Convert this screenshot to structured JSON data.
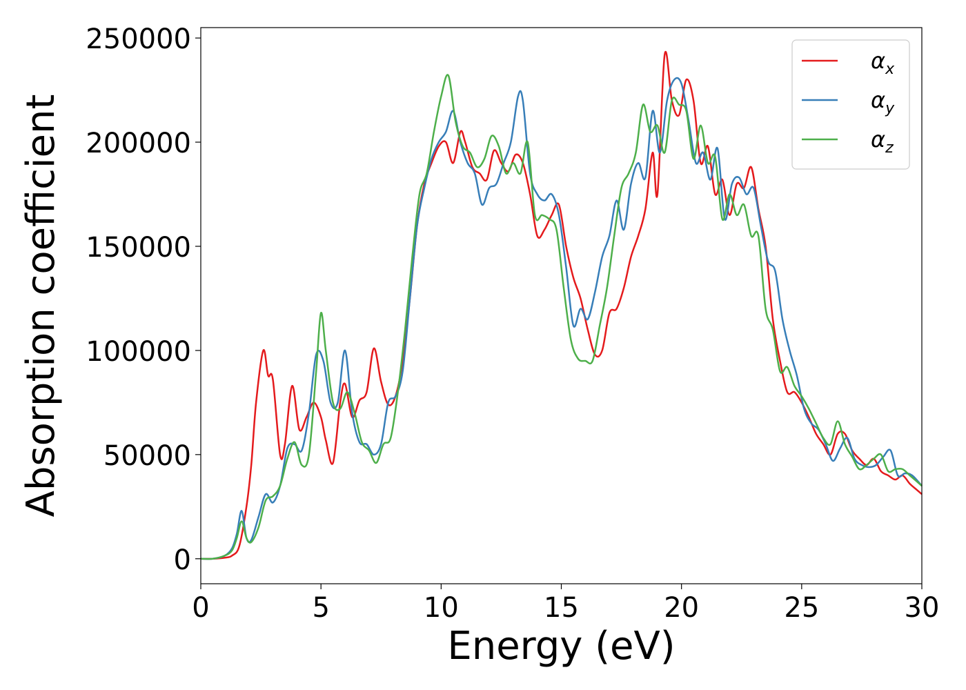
{
  "chart_data": {
    "type": "line",
    "xlabel": "Energy (eV)",
    "ylabel": "Absorption coefficient",
    "xlim": [
      0,
      30
    ],
    "ylim": [
      -12000,
      255000
    ],
    "xticks": [
      0,
      5,
      10,
      15,
      20,
      25,
      30
    ],
    "xtick_labels": [
      "0",
      "5",
      "10",
      "15",
      "20",
      "25",
      "30"
    ],
    "yticks": [
      0,
      50000,
      100000,
      150000,
      200000,
      250000
    ],
    "ytick_labels": [
      "0",
      "50000",
      "100000",
      "150000",
      "200000",
      "250000"
    ],
    "grid": false,
    "legend_position": "top-right",
    "series": [
      {
        "name": "α_x",
        "label_main": "α",
        "label_sub": "x",
        "color": "#e41a1c",
        "x": [
          0,
          0.5,
          1.0,
          1.3,
          1.6,
          1.9,
          2.1,
          2.3,
          2.6,
          2.8,
          3.0,
          3.3,
          3.5,
          3.8,
          4.1,
          4.4,
          4.7,
          5.0,
          5.2,
          5.5,
          5.8,
          6.0,
          6.3,
          6.6,
          6.9,
          7.2,
          7.5,
          7.8,
          8.1,
          8.4,
          8.7,
          9.0,
          9.3,
          9.6,
          9.9,
          10.2,
          10.5,
          10.8,
          11.0,
          11.3,
          11.6,
          11.9,
          12.2,
          12.5,
          12.8,
          13.1,
          13.4,
          13.7,
          14.0,
          14.3,
          14.6,
          14.9,
          15.2,
          15.5,
          15.8,
          16.1,
          16.4,
          16.7,
          17.0,
          17.3,
          17.6,
          17.9,
          18.2,
          18.5,
          18.8,
          19.0,
          19.3,
          19.6,
          19.9,
          20.2,
          20.5,
          20.8,
          21.1,
          21.4,
          21.7,
          22.0,
          22.3,
          22.6,
          22.9,
          23.2,
          23.5,
          23.8,
          24.1,
          24.4,
          24.7,
          25.0,
          25.3,
          25.6,
          25.9,
          26.2,
          26.5,
          26.8,
          27.1,
          27.4,
          27.7,
          28.0,
          28.3,
          28.6,
          28.9,
          29.2,
          29.5,
          29.8,
          30
        ],
        "y": [
          0,
          0,
          500,
          1500,
          6000,
          25000,
          45000,
          75000,
          100000,
          88000,
          86000,
          50000,
          55000,
          83000,
          62000,
          68000,
          75000,
          68000,
          57000,
          46000,
          75000,
          84000,
          68000,
          76000,
          80000,
          101000,
          85000,
          74000,
          78000,
          95000,
          125000,
          160000,
          180000,
          190000,
          198000,
          200000,
          190000,
          205000,
          200000,
          188000,
          185000,
          182000,
          196000,
          190000,
          186000,
          194000,
          190000,
          175000,
          155000,
          158000,
          165000,
          170000,
          150000,
          135000,
          125000,
          110000,
          98000,
          100000,
          118000,
          120000,
          130000,
          145000,
          155000,
          168000,
          195000,
          175000,
          242000,
          220000,
          213000,
          230000,
          220000,
          190000,
          198000,
          175000,
          182000,
          165000,
          180000,
          178000,
          188000,
          168000,
          150000,
          115000,
          95000,
          80000,
          80000,
          75000,
          68000,
          60000,
          55000,
          50000,
          60000,
          60000,
          52000,
          48000,
          45000,
          48000,
          42000,
          40000,
          38000,
          40000,
          36000,
          33000,
          31000
        ]
      },
      {
        "name": "α_y",
        "label_main": "α",
        "label_sub": "y",
        "color": "#377eb8",
        "x": [
          0,
          0.5,
          1.0,
          1.3,
          1.5,
          1.7,
          1.9,
          2.1,
          2.4,
          2.7,
          3.0,
          3.3,
          3.6,
          3.9,
          4.2,
          4.5,
          4.8,
          5.1,
          5.4,
          5.7,
          6.0,
          6.3,
          6.6,
          6.9,
          7.2,
          7.5,
          7.8,
          8.1,
          8.4,
          8.7,
          9.0,
          9.3,
          9.6,
          9.9,
          10.2,
          10.5,
          10.8,
          11.1,
          11.4,
          11.7,
          12.0,
          12.3,
          12.6,
          12.9,
          13.2,
          13.4,
          13.7,
          14.0,
          14.3,
          14.6,
          14.9,
          15.2,
          15.5,
          15.8,
          16.1,
          16.4,
          16.7,
          17.0,
          17.3,
          17.6,
          17.9,
          18.2,
          18.5,
          18.8,
          19.1,
          19.4,
          19.7,
          20.0,
          20.3,
          20.6,
          20.9,
          21.2,
          21.5,
          21.8,
          22.1,
          22.4,
          22.7,
          23.0,
          23.3,
          23.6,
          23.9,
          24.2,
          24.5,
          24.8,
          25.1,
          25.4,
          25.7,
          26.0,
          26.3,
          26.6,
          26.9,
          27.2,
          27.5,
          27.8,
          28.1,
          28.4,
          28.7,
          29.0,
          29.3,
          29.6,
          30
        ],
        "y": [
          0,
          0,
          1500,
          5000,
          12000,
          23000,
          10000,
          9000,
          20000,
          31000,
          27000,
          35000,
          53000,
          55000,
          52000,
          70000,
          98000,
          95000,
          75000,
          75000,
          100000,
          70000,
          56000,
          55000,
          50000,
          55000,
          75000,
          78000,
          90000,
          125000,
          160000,
          178000,
          192000,
          200000,
          205000,
          215000,
          200000,
          190000,
          185000,
          170000,
          178000,
          180000,
          190000,
          200000,
          222000,
          220000,
          185000,
          175000,
          172000,
          175000,
          165000,
          140000,
          112000,
          120000,
          115000,
          128000,
          145000,
          155000,
          172000,
          158000,
          180000,
          190000,
          183000,
          215000,
          195000,
          220000,
          230000,
          228000,
          210000,
          190000,
          195000,
          182000,
          197000,
          163000,
          180000,
          183000,
          175000,
          178000,
          160000,
          143000,
          138000,
          115000,
          100000,
          88000,
          72000,
          65000,
          62000,
          55000,
          47000,
          53000,
          58000,
          48000,
          45000,
          44000,
          45000,
          49000,
          52000,
          40000,
          41000,
          40000,
          35000
        ]
      },
      {
        "name": "α_z",
        "label_main": "α",
        "label_sub": "z",
        "color": "#4daf4a",
        "x": [
          0,
          0.5,
          1.0,
          1.3,
          1.5,
          1.7,
          1.9,
          2.1,
          2.4,
          2.7,
          3.0,
          3.3,
          3.6,
          3.9,
          4.2,
          4.5,
          4.8,
          5.0,
          5.2,
          5.5,
          5.8,
          6.1,
          6.4,
          6.7,
          7.0,
          7.3,
          7.6,
          7.9,
          8.2,
          8.5,
          8.8,
          9.1,
          9.4,
          9.7,
          10.0,
          10.3,
          10.6,
          10.9,
          11.2,
          11.5,
          11.8,
          12.1,
          12.4,
          12.7,
          13.0,
          13.3,
          13.6,
          13.9,
          14.2,
          14.5,
          14.8,
          15.1,
          15.4,
          15.7,
          16.0,
          16.3,
          16.6,
          16.9,
          17.2,
          17.5,
          17.8,
          18.1,
          18.4,
          18.7,
          19.0,
          19.3,
          19.6,
          19.9,
          20.2,
          20.5,
          20.8,
          21.1,
          21.4,
          21.7,
          22.0,
          22.3,
          22.6,
          22.9,
          23.2,
          23.5,
          23.8,
          24.1,
          24.4,
          24.7,
          25.0,
          25.3,
          25.6,
          25.9,
          26.2,
          26.5,
          26.8,
          27.1,
          27.4,
          27.7,
          28.0,
          28.3,
          28.6,
          28.9,
          29.2,
          29.5,
          30
        ],
        "y": [
          0,
          0,
          1500,
          4000,
          10000,
          18000,
          10000,
          8000,
          15000,
          28000,
          30000,
          35000,
          48000,
          56000,
          45000,
          50000,
          90000,
          118000,
          100000,
          75000,
          72000,
          80000,
          70000,
          56000,
          52000,
          46000,
          55000,
          58000,
          80000,
          110000,
          145000,
          175000,
          185000,
          205000,
          222000,
          232000,
          210000,
          198000,
          195000,
          188000,
          192000,
          203000,
          198000,
          185000,
          190000,
          185000,
          200000,
          165000,
          165000,
          163000,
          158000,
          130000,
          105000,
          96000,
          95000,
          95000,
          112000,
          130000,
          155000,
          178000,
          185000,
          195000,
          218000,
          205000,
          208000,
          195000,
          220000,
          218000,
          215000,
          192000,
          208000,
          190000,
          193000,
          163000,
          175000,
          165000,
          170000,
          155000,
          155000,
          120000,
          110000,
          90000,
          92000,
          83000,
          78000,
          72000,
          65000,
          58000,
          55000,
          66000,
          55000,
          49000,
          43000,
          45000,
          48000,
          50000,
          42000,
          43000,
          43000,
          40000,
          35000
        ]
      }
    ]
  }
}
